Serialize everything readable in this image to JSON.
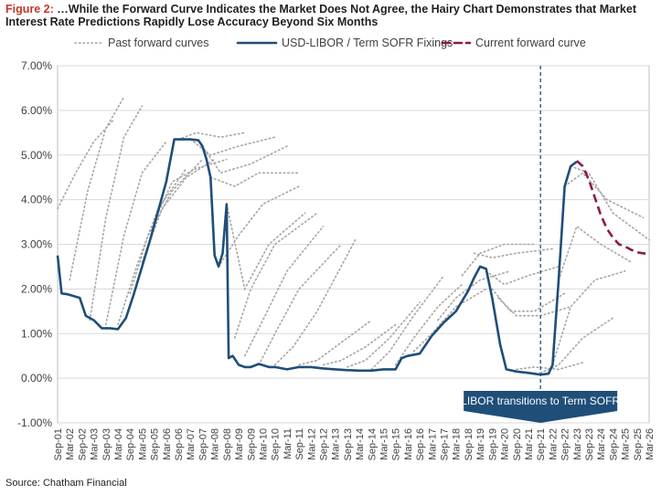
{
  "figure_label": "Figure 2:",
  "title": "…While the Forward Curve Indicates the Market Does Not Agree, the Hairy Chart Demonstrates that Market Interest Rate Predictions Rapidly Lose Accuracy Beyond Six Months",
  "source": "Source: Chatham Financial",
  "colors": {
    "fixings": "#1f4e79",
    "forward": "#8b1a4a",
    "past": "#a6a6a6",
    "annotation_bg": "#1f4e79",
    "title_label": "#c0392b"
  },
  "chart_data": {
    "type": "line",
    "xlabel": "",
    "ylabel": "",
    "x_range": [
      "2001-09",
      "2026-03"
    ],
    "ylim": [
      -1.0,
      7.0
    ],
    "y_ticks": [
      "-1.00%",
      "0.00%",
      "1.00%",
      "2.00%",
      "3.00%",
      "4.00%",
      "5.00%",
      "6.00%",
      "7.00%"
    ],
    "y_tick_values": [
      -1,
      0,
      1,
      2,
      3,
      4,
      5,
      6,
      7
    ],
    "x_ticks": [
      "Sep-01",
      "Mar-02",
      "Sep-02",
      "Mar-03",
      "Sep-03",
      "Mar-04",
      "Sep-04",
      "Mar-05",
      "Sep-05",
      "Mar-06",
      "Sep-06",
      "Mar-07",
      "Sep-07",
      "Mar-08",
      "Sep-08",
      "Mar-09",
      "Sep-09",
      "Mar-10",
      "Sep-10",
      "Mar-11",
      "Sep-11",
      "Mar-12",
      "Sep-12",
      "Mar-13",
      "Sep-13",
      "Mar-14",
      "Sep-14",
      "Mar-15",
      "Sep-15",
      "Mar-16",
      "Sep-16",
      "Mar-17",
      "Sep-17",
      "Mar-18",
      "Sep-18",
      "Mar-19",
      "Sep-19",
      "Mar-20",
      "Sep-20",
      "Mar-21",
      "Sep-21",
      "Mar-22",
      "Sep-22",
      "Mar-23",
      "Sep-23",
      "Mar-24",
      "Sep-24",
      "Mar-25",
      "Sep-25",
      "Mar-26"
    ],
    "legend": [
      "Past forward curves",
      "USD-LIBOR / Term SOFR Fixings",
      "Current forward curve"
    ],
    "legend_position": "top",
    "grid": true,
    "series": [
      {
        "name": "USD-LIBOR / Term SOFR Fixings",
        "style": "solid",
        "x": [
          "2001-09",
          "2001-11",
          "2002-02",
          "2002-08",
          "2002-11",
          "2003-03",
          "2003-07",
          "2003-11",
          "2004-03",
          "2004-07",
          "2004-11",
          "2005-03",
          "2005-07",
          "2005-11",
          "2006-03",
          "2006-07",
          "2006-11",
          "2007-03",
          "2007-07",
          "2007-09",
          "2007-11",
          "2008-01",
          "2008-03",
          "2008-05",
          "2008-07",
          "2008-09",
          "2008-10",
          "2008-12",
          "2009-03",
          "2009-06",
          "2009-09",
          "2010-01",
          "2010-06",
          "2010-09",
          "2011-03",
          "2011-09",
          "2012-03",
          "2012-09",
          "2013-03",
          "2013-09",
          "2014-03",
          "2014-09",
          "2015-03",
          "2015-09",
          "2015-12",
          "2016-03",
          "2016-09",
          "2017-03",
          "2017-09",
          "2018-03",
          "2018-09",
          "2018-12",
          "2019-03",
          "2019-06",
          "2019-09",
          "2020-01",
          "2020-04",
          "2020-09",
          "2021-03",
          "2021-09",
          "2022-01",
          "2022-03",
          "2022-06",
          "2022-09",
          "2022-12",
          "2023-03"
        ],
        "y": [
          2.75,
          1.9,
          1.88,
          1.8,
          1.4,
          1.3,
          1.12,
          1.12,
          1.1,
          1.35,
          1.9,
          2.5,
          3.1,
          3.75,
          4.4,
          5.35,
          5.35,
          5.35,
          5.33,
          5.2,
          4.9,
          4.5,
          2.75,
          2.5,
          2.8,
          3.9,
          0.45,
          0.5,
          0.3,
          0.25,
          0.25,
          0.32,
          0.25,
          0.25,
          0.2,
          0.25,
          0.25,
          0.22,
          0.2,
          0.18,
          0.17,
          0.17,
          0.2,
          0.2,
          0.45,
          0.5,
          0.55,
          0.95,
          1.25,
          1.5,
          1.95,
          2.25,
          2.5,
          2.45,
          1.8,
          0.75,
          0.2,
          0.15,
          0.12,
          0.08,
          0.1,
          0.3,
          2.2,
          4.3,
          4.75,
          4.85
        ]
      },
      {
        "name": "Current forward curve",
        "style": "dashed",
        "x": [
          "2023-03",
          "2023-06",
          "2023-09",
          "2023-12",
          "2024-03",
          "2024-06",
          "2024-09",
          "2024-12",
          "2025-03",
          "2025-06",
          "2025-09",
          "2025-12",
          "2026-03"
        ],
        "y": [
          4.87,
          4.75,
          4.45,
          4.05,
          3.65,
          3.35,
          3.15,
          3.0,
          2.95,
          2.88,
          2.82,
          2.8,
          2.78
        ]
      },
      {
        "name": "Past forward curves",
        "style": "dotted",
        "x": [
          "2001-09",
          "2002-06",
          "2003-03",
          "2004-01"
        ],
        "y": [
          3.8,
          4.6,
          5.3,
          5.8
        ]
      },
      {
        "name": "Past forward curves",
        "style": "dotted",
        "x": [
          "2002-03",
          "2002-12",
          "2003-09",
          "2004-06"
        ],
        "y": [
          2.2,
          4.2,
          5.6,
          6.3
        ]
      },
      {
        "name": "Past forward curves",
        "style": "dotted",
        "x": [
          "2003-01",
          "2003-09",
          "2004-06",
          "2005-03"
        ],
        "y": [
          1.3,
          3.6,
          5.4,
          6.1
        ]
      },
      {
        "name": "Past forward curves",
        "style": "dotted",
        "x": [
          "2003-09",
          "2004-06",
          "2005-03",
          "2006-03"
        ],
        "y": [
          1.2,
          3.2,
          4.6,
          5.3
        ]
      },
      {
        "name": "Past forward curves",
        "style": "dotted",
        "x": [
          "2004-03",
          "2005-01",
          "2005-11",
          "2007-01"
        ],
        "y": [
          1.2,
          2.6,
          3.8,
          4.7
        ]
      },
      {
        "name": "Past forward curves",
        "style": "dotted",
        "x": [
          "2004-09",
          "2005-06",
          "2006-06",
          "2007-09"
        ],
        "y": [
          1.9,
          3.2,
          4.2,
          4.9
        ]
      },
      {
        "name": "Past forward curves",
        "style": "dotted",
        "x": [
          "2005-03",
          "2006-01",
          "2007-01",
          "2008-03"
        ],
        "y": [
          2.6,
          3.8,
          4.5,
          4.9
        ]
      },
      {
        "name": "Past forward curves",
        "style": "dotted",
        "x": [
          "2005-09",
          "2006-06",
          "2007-06",
          "2008-09"
        ],
        "y": [
          3.5,
          4.4,
          4.7,
          4.9
        ]
      },
      {
        "name": "Past forward curves",
        "style": "dotted",
        "x": [
          "2006-09",
          "2007-06",
          "2008-06",
          "2009-06"
        ],
        "y": [
          5.35,
          5.5,
          5.4,
          5.5
        ]
      },
      {
        "name": "Past forward curves",
        "style": "dotted",
        "x": [
          "2007-03",
          "2008-01",
          "2009-03",
          "2010-09"
        ],
        "y": [
          5.35,
          5.0,
          5.2,
          5.4
        ]
      },
      {
        "name": "Past forward curves",
        "style": "dotted",
        "x": [
          "2007-09",
          "2008-06",
          "2009-09",
          "2011-03"
        ],
        "y": [
          5.2,
          4.6,
          4.8,
          5.2
        ]
      },
      {
        "name": "Past forward curves",
        "style": "dotted",
        "x": [
          "2008-01",
          "2009-01",
          "2010-01",
          "2011-09"
        ],
        "y": [
          4.5,
          4.3,
          4.6,
          4.6
        ]
      },
      {
        "name": "Past forward curves",
        "style": "dotted",
        "x": [
          "2008-05",
          "2009-03",
          "2010-03",
          "2011-09"
        ],
        "y": [
          2.5,
          3.2,
          3.9,
          4.3
        ]
      },
      {
        "name": "Past forward curves",
        "style": "dotted",
        "x": [
          "2008-09",
          "2009-06",
          "2010-06",
          "2011-12"
        ],
        "y": [
          3.9,
          2.0,
          3.0,
          3.7
        ]
      },
      {
        "name": "Past forward curves",
        "style": "dotted",
        "x": [
          "2009-01",
          "2009-09",
          "2010-09",
          "2012-06"
        ],
        "y": [
          0.9,
          2.0,
          3.0,
          3.7
        ]
      },
      {
        "name": "Past forward curves",
        "style": "dotted",
        "x": [
          "2009-06",
          "2010-03",
          "2011-03",
          "2012-09"
        ],
        "y": [
          0.5,
          1.3,
          2.4,
          3.4
        ]
      },
      {
        "name": "Past forward curves",
        "style": "dotted",
        "x": [
          "2010-01",
          "2010-09",
          "2011-09",
          "2013-06"
        ],
        "y": [
          0.3,
          1.0,
          2.0,
          3.0
        ]
      },
      {
        "name": "Past forward curves",
        "style": "dotted",
        "x": [
          "2010-09",
          "2011-06",
          "2012-06",
          "2014-01"
        ],
        "y": [
          0.3,
          0.7,
          1.5,
          3.1
        ]
      },
      {
        "name": "Past forward curves",
        "style": "dotted",
        "x": [
          "2011-09",
          "2012-06",
          "2013-06",
          "2014-09"
        ],
        "y": [
          0.3,
          0.4,
          0.8,
          1.3
        ]
      },
      {
        "name": "Past forward curves",
        "style": "dotted",
        "x": [
          "2012-09",
          "2013-06",
          "2014-06",
          "2015-09"
        ],
        "y": [
          0.3,
          0.4,
          0.7,
          1.2
        ]
      },
      {
        "name": "Past forward curves",
        "style": "dotted",
        "x": [
          "2013-09",
          "2014-06",
          "2015-06",
          "2016-09"
        ],
        "y": [
          0.25,
          0.4,
          0.9,
          1.7
        ]
      },
      {
        "name": "Past forward curves",
        "style": "dotted",
        "x": [
          "2014-09",
          "2015-06",
          "2016-06",
          "2017-09"
        ],
        "y": [
          0.2,
          0.6,
          1.4,
          2.3
        ]
      },
      {
        "name": "Past forward curves",
        "style": "dotted",
        "x": [
          "2015-09",
          "2016-06",
          "2017-06",
          "2018-06"
        ],
        "y": [
          0.3,
          0.9,
          1.6,
          2.1
        ]
      },
      {
        "name": "Past forward curves",
        "style": "dotted",
        "x": [
          "2016-06",
          "2017-03",
          "2018-03",
          "2019-06"
        ],
        "y": [
          0.6,
          1.0,
          1.6,
          2.0
        ]
      },
      {
        "name": "Past forward curves",
        "style": "dotted",
        "x": [
          "2017-06",
          "2018-03",
          "2019-03",
          "2020-06"
        ],
        "y": [
          1.3,
          1.8,
          2.2,
          2.4
        ]
      },
      {
        "name": "Past forward curves",
        "style": "dotted",
        "x": [
          "2018-06",
          "2019-03",
          "2020-03",
          "2021-06"
        ],
        "y": [
          2.3,
          2.8,
          3.0,
          3.0
        ]
      },
      {
        "name": "Past forward curves",
        "style": "dotted",
        "x": [
          "2018-12",
          "2019-09",
          "2020-09",
          "2022-03"
        ],
        "y": [
          2.8,
          2.7,
          2.8,
          2.9
        ]
      },
      {
        "name": "Past forward curves",
        "style": "dotted",
        "x": [
          "2019-06",
          "2020-03",
          "2021-03",
          "2022-06"
        ],
        "y": [
          2.4,
          2.1,
          2.3,
          2.5
        ]
      },
      {
        "name": "Past forward curves",
        "style": "dotted",
        "x": [
          "2019-09",
          "2020-06",
          "2021-06",
          "2022-09"
        ],
        "y": [
          2.0,
          1.5,
          1.5,
          1.9
        ]
      },
      {
        "name": "Past forward curves",
        "style": "dotted",
        "x": [
          "2019-12",
          "2020-09",
          "2021-09",
          "2022-12"
        ],
        "y": [
          1.8,
          1.4,
          1.4,
          1.6
        ]
      },
      {
        "name": "Past forward curves",
        "style": "dotted",
        "x": [
          "2020-09",
          "2021-06",
          "2022-06",
          "2023-06"
        ],
        "y": [
          0.2,
          0.25,
          0.2,
          0.35
        ]
      },
      {
        "name": "Past forward curves",
        "style": "dotted",
        "x": [
          "2021-09",
          "2022-06",
          "2023-06",
          "2024-09"
        ],
        "y": [
          0.12,
          0.3,
          0.9,
          1.35
        ]
      },
      {
        "name": "Past forward curves",
        "style": "dotted",
        "x": [
          "2022-03",
          "2022-12",
          "2023-12",
          "2025-03"
        ],
        "y": [
          0.3,
          1.6,
          2.2,
          2.4
        ]
      },
      {
        "name": "Past forward curves",
        "style": "dotted",
        "x": [
          "2022-06",
          "2023-03",
          "2024-03",
          "2025-06"
        ],
        "y": [
          2.2,
          3.4,
          3.0,
          2.6
        ]
      },
      {
        "name": "Past forward curves",
        "style": "dotted",
        "x": [
          "2022-09",
          "2023-06",
          "2024-06",
          "2025-12"
        ],
        "y": [
          4.3,
          4.6,
          4.0,
          3.6
        ]
      },
      {
        "name": "Past forward curves",
        "style": "dotted",
        "x": [
          "2022-12",
          "2023-09",
          "2024-09",
          "2026-03"
        ],
        "y": [
          4.75,
          4.6,
          3.7,
          3.1
        ]
      }
    ],
    "annotations": [
      {
        "type": "vline",
        "x": "2021-09",
        "style": "dashed"
      },
      {
        "type": "label",
        "text": "LIBOR transitions to Term SOFR",
        "anchor_x": "2021-09"
      }
    ]
  }
}
